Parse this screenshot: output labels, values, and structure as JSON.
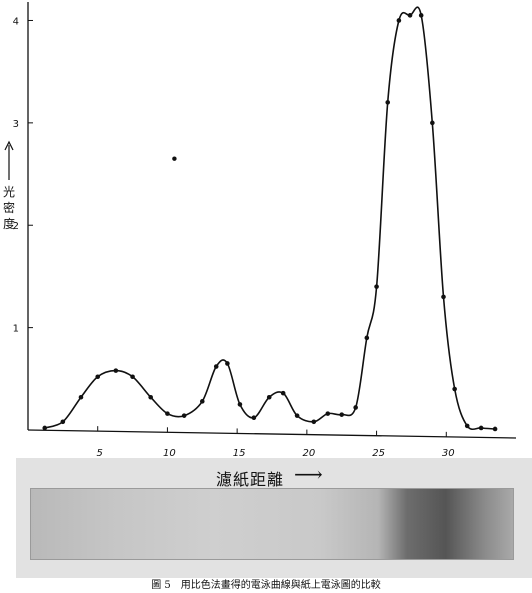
{
  "chart_data": {
    "type": "line",
    "title": "",
    "xlabel": "濾紙距離",
    "ylabel": "光密度",
    "xlim": [
      0,
      35
    ],
    "ylim": [
      0,
      4.2
    ],
    "x_ticks": [
      5,
      10,
      15,
      20,
      25,
      30
    ],
    "y_ticks": [
      1,
      2,
      3,
      4
    ],
    "grid": false,
    "series": [
      {
        "x": [
          1.2,
          2.5,
          3.8,
          5.0,
          6.3,
          7.5,
          8.8,
          10.0,
          11.2,
          12.5,
          13.5,
          14.3,
          15.2,
          16.2,
          17.3,
          18.3,
          19.3,
          20.5,
          21.5,
          22.5,
          23.5,
          24.3,
          25.0,
          25.8,
          26.6,
          27.4,
          28.2,
          29.0,
          29.8,
          30.6,
          31.5,
          32.5,
          33.5
        ],
        "y": [
          0.02,
          0.08,
          0.32,
          0.52,
          0.58,
          0.52,
          0.32,
          0.16,
          0.14,
          0.28,
          0.62,
          0.65,
          0.25,
          0.12,
          0.32,
          0.36,
          0.14,
          0.08,
          0.16,
          0.15,
          0.22,
          0.9,
          1.4,
          3.2,
          4.0,
          4.05,
          4.05,
          3.0,
          1.3,
          0.4,
          0.04,
          0.02,
          0.01
        ]
      }
    ]
  },
  "stray_dot": {
    "x": 10.5,
    "y": 2.65
  },
  "strip_label": "濾紙距離",
  "strip_arrow": "⟶",
  "caption": "圖 5　用比色法畫得的電泳曲線與紙上電泳圖的比較",
  "colors": {
    "ink": "#111111",
    "paper_light": "#cfcfcf",
    "paper_dark": "#555555",
    "strip_bg": "#e2e2e2"
  }
}
